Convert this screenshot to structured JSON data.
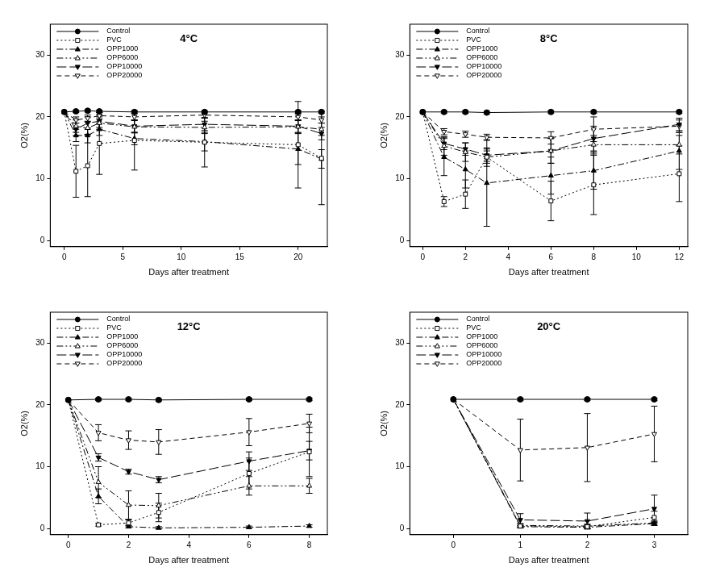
{
  "chart_data": [
    {
      "type": "line",
      "title": "4°C",
      "x_label": "Days after treatment",
      "y_label": "O2(%)",
      "x": [
        0,
        1,
        2,
        3,
        6,
        12,
        20,
        22
      ],
      "xlim": [
        -1.2,
        22.5
      ],
      "xticks": [
        0,
        5,
        10,
        15,
        20
      ],
      "ylim": [
        -1,
        35
      ],
      "yticks": [
        0,
        10,
        20,
        30
      ],
      "grid": false,
      "legend": "upper left",
      "series": [
        {
          "name": "Control",
          "color": "#000000",
          "marker": "circle",
          "line_style": "solid",
          "values": [
            20.8,
            20.9,
            21.0,
            20.9,
            20.8,
            20.8,
            20.8,
            20.8
          ],
          "errors": [
            0,
            0.2,
            0.2,
            0.2,
            0.2,
            0.2,
            0.2,
            0.2
          ]
        },
        {
          "name": "PVC",
          "color": "#000000",
          "marker": "open_square",
          "line_style": "dotted",
          "values": [
            20.8,
            11.2,
            12.1,
            15.7,
            16.2,
            15.9,
            15.5,
            13.3
          ],
          "errors": [
            0,
            4.2,
            5,
            5,
            4.8,
            4,
            7,
            7.5
          ]
        },
        {
          "name": "OPP1000",
          "color": "#000000",
          "marker": "triangle",
          "line_style": "dashdot",
          "values": [
            20.8,
            17.0,
            17.0,
            18.0,
            16.5,
            16.0,
            14.8,
            13.2
          ],
          "errors": [
            0,
            1,
            1.2,
            1,
            1,
            1.5,
            2.5,
            1.5
          ]
        },
        {
          "name": "OPP6000",
          "color": "#000000",
          "marker": "open_triangle",
          "line_style": "dashdotdot",
          "values": [
            20.8,
            18.5,
            18.2,
            19.0,
            18.4,
            18.3,
            18.4,
            18.0
          ],
          "errors": [
            0,
            1,
            1,
            1,
            1,
            1,
            1,
            1
          ]
        },
        {
          "name": "OPP10000",
          "color": "#000000",
          "marker": "triangle_down",
          "line_style": "longdash",
          "values": [
            20.8,
            18.0,
            19.0,
            19.3,
            18.5,
            18.8,
            18.5,
            17.3
          ],
          "errors": [
            0,
            1,
            1,
            1,
            1,
            1,
            1,
            1
          ]
        },
        {
          "name": "OPP20000",
          "color": "#000000",
          "marker": "open_triangle_down",
          "line_style": "dashed",
          "values": [
            20.8,
            19.5,
            19.8,
            20.2,
            20.0,
            20.3,
            20.0,
            19.5
          ],
          "errors": [
            0,
            0.5,
            0.5,
            0.5,
            0.5,
            0.5,
            0.5,
            0.5
          ]
        }
      ]
    },
    {
      "type": "line",
      "title": "8°C",
      "x_label": "Days after treatment",
      "y_label": "O2(%)",
      "x": [
        0,
        1,
        2,
        3,
        6,
        8,
        12
      ],
      "xlim": [
        -0.6,
        12.4
      ],
      "xticks": [
        0,
        2,
        4,
        6,
        8,
        10,
        12
      ],
      "ylim": [
        -1,
        35
      ],
      "yticks": [
        0,
        10,
        20,
        30
      ],
      "grid": false,
      "legend": "upper left",
      "series": [
        {
          "name": "Control",
          "color": "#000000",
          "marker": "circle",
          "line_style": "solid",
          "values": [
            20.8,
            20.8,
            20.8,
            20.7,
            20.8,
            20.8,
            20.8
          ],
          "errors": [
            0,
            0.2,
            0.2,
            0.2,
            0.2,
            0.2,
            0.2
          ]
        },
        {
          "name": "PVC",
          "color": "#000000",
          "marker": "open_square",
          "line_style": "dotted",
          "values": [
            20.8,
            6.3,
            7.5,
            13.5,
            6.4,
            9.0,
            10.8
          ],
          "errors": [
            0,
            0.8,
            2.3,
            1,
            3.2,
            4.8,
            4.5
          ]
        },
        {
          "name": "OPP1000",
          "color": "#000000",
          "marker": "triangle",
          "line_style": "dashdot",
          "values": [
            20.8,
            13.5,
            11.5,
            9.3,
            10.5,
            11.3,
            14.5
          ],
          "errors": [
            0,
            3,
            3,
            7,
            3,
            3,
            3
          ]
        },
        {
          "name": "OPP6000",
          "color": "#000000",
          "marker": "open_triangle",
          "line_style": "dashdotdot",
          "values": [
            20.8,
            15.3,
            14.3,
            13.5,
            14.5,
            15.5,
            15.5
          ],
          "errors": [
            0,
            1.5,
            1.5,
            1.5,
            2,
            1.5,
            1.5
          ]
        },
        {
          "name": "OPP10000",
          "color": "#000000",
          "marker": "triangle_down",
          "line_style": "longdash",
          "values": [
            20.8,
            15.7,
            14.8,
            13.8,
            14.5,
            16.5,
            18.8
          ],
          "errors": [
            0,
            1,
            1,
            1,
            2,
            2,
            1
          ]
        },
        {
          "name": "OPP20000",
          "color": "#000000",
          "marker": "open_triangle_down",
          "line_style": "dashed",
          "values": [
            20.8,
            17.6,
            17.2,
            16.7,
            16.6,
            18.0,
            18.5
          ],
          "errors": [
            0,
            0.5,
            0.5,
            0.5,
            1,
            2,
            1
          ]
        }
      ]
    },
    {
      "type": "line",
      "title": "12°C",
      "x_label": "Days after treatment",
      "y_label": "O2(%)",
      "x": [
        0,
        1,
        2,
        3,
        6,
        8
      ],
      "xlim": [
        -0.6,
        8.6
      ],
      "xticks": [
        0,
        2,
        4,
        6,
        8
      ],
      "ylim": [
        -1,
        35
      ],
      "yticks": [
        0,
        10,
        20,
        30
      ],
      "grid": false,
      "legend": "upper left",
      "series": [
        {
          "name": "Control",
          "color": "#000000",
          "marker": "circle",
          "line_style": "solid",
          "values": [
            20.8,
            20.9,
            20.9,
            20.8,
            20.9,
            20.9
          ],
          "errors": [
            0,
            0.2,
            0.2,
            0.2,
            0.2,
            0.2
          ]
        },
        {
          "name": "PVC",
          "color": "#000000",
          "marker": "open_square",
          "line_style": "dotted",
          "values": [
            20.8,
            0.6,
            0.9,
            2.6,
            8.9,
            12.4
          ],
          "errors": [
            0,
            0.2,
            0.5,
            1.5,
            2.5,
            4
          ]
        },
        {
          "name": "OPP1000",
          "color": "#000000",
          "marker": "triangle",
          "line_style": "dashdot",
          "values": [
            20.8,
            5.2,
            0.3,
            0.1,
            0.2,
            0.4
          ],
          "errors": [
            0,
            1.2,
            0.2,
            0.2,
            0.2,
            0.2
          ]
        },
        {
          "name": "OPP6000",
          "color": "#000000",
          "marker": "open_triangle",
          "line_style": "dashdotdot",
          "values": [
            20.8,
            7.5,
            3.8,
            3.7,
            6.9,
            6.9
          ],
          "errors": [
            0,
            2.5,
            2.3,
            2,
            1.5,
            1.2
          ]
        },
        {
          "name": "OPP10000",
          "color": "#000000",
          "marker": "triangle_down",
          "line_style": "longdash",
          "values": [
            20.8,
            11.5,
            9.2,
            7.9,
            10.9,
            12.6
          ],
          "errors": [
            0,
            0.6,
            0.4,
            0.5,
            1.5,
            1.5
          ]
        },
        {
          "name": "OPP20000",
          "color": "#000000",
          "marker": "open_triangle_down",
          "line_style": "dashed",
          "values": [
            20.8,
            15.5,
            14.3,
            14.0,
            15.6,
            17.0
          ],
          "errors": [
            0,
            1.3,
            1.5,
            2,
            2.2,
            1.5
          ]
        }
      ]
    },
    {
      "type": "line",
      "title": "20°C",
      "x_label": "Days after treatment",
      "y_label": "O2(%)",
      "x": [
        0,
        1,
        2,
        3
      ],
      "xlim": [
        -0.65,
        3.5
      ],
      "xticks": [
        0,
        1,
        2,
        3
      ],
      "ylim": [
        -1,
        35
      ],
      "yticks": [
        0,
        10,
        20,
        30
      ],
      "grid": false,
      "legend": "upper left",
      "series": [
        {
          "name": "Control",
          "color": "#000000",
          "marker": "circle",
          "line_style": "solid",
          "values": [
            20.9,
            20.9,
            20.9,
            20.9
          ],
          "errors": [
            0,
            0.2,
            0.2,
            0.2
          ]
        },
        {
          "name": "PVC",
          "color": "#000000",
          "marker": "open_square",
          "line_style": "dotted",
          "values": [
            20.9,
            0.4,
            0.3,
            1.8
          ],
          "errors": [
            0,
            0.3,
            0.3,
            1
          ]
        },
        {
          "name": "OPP1000",
          "color": "#000000",
          "marker": "triangle",
          "line_style": "dashdot",
          "values": [
            20.9,
            0.3,
            0.2,
            0.8
          ],
          "errors": [
            0,
            0.2,
            0.2,
            0.3
          ]
        },
        {
          "name": "OPP6000",
          "color": "#000000",
          "marker": "open_triangle",
          "line_style": "dashdotdot",
          "values": [
            20.9,
            0.5,
            0.4,
            0.9
          ],
          "errors": [
            0,
            0.3,
            0.3,
            0.4
          ]
        },
        {
          "name": "OPP10000",
          "color": "#000000",
          "marker": "triangle_down",
          "line_style": "longdash",
          "values": [
            20.9,
            1.4,
            1.2,
            3.2
          ],
          "errors": [
            0,
            1,
            1.3,
            2.2
          ]
        },
        {
          "name": "OPP20000",
          "color": "#000000",
          "marker": "open_triangle_down",
          "line_style": "dashed",
          "values": [
            20.9,
            12.7,
            13.1,
            15.3
          ],
          "errors": [
            0,
            5,
            5.5,
            4.5
          ]
        }
      ]
    }
  ]
}
